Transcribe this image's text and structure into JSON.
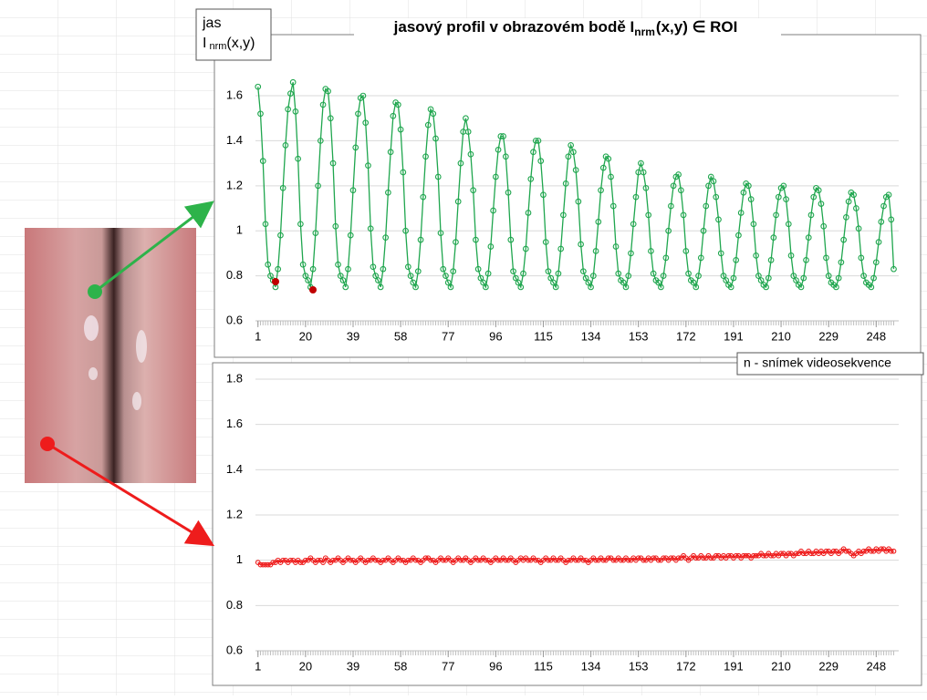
{
  "chart_data": [
    {
      "type": "line",
      "title": "jasový profil v obrazovém bodě I",
      "title_subscript": "nrm",
      "title_end": "(x,y) ∈ ROI",
      "y_label": "jas",
      "y_label_symbol": "I",
      "y_label_subscript": "nrm",
      "y_label_end": "(x,y)",
      "x_label": "n - snímek videosekvence",
      "marker": "circle",
      "grid": true,
      "xlim": [
        0,
        257
      ],
      "xticks": [
        1,
        20,
        39,
        58,
        77,
        96,
        115,
        134,
        153,
        172,
        191,
        210,
        229,
        248
      ],
      "ylim": [
        0.6,
        1.75
      ],
      "yticks": [
        0.6,
        0.8,
        1,
        1.2,
        1.4,
        1.6
      ],
      "x": [
        1,
        2,
        3,
        4,
        5,
        6,
        7,
        8,
        9,
        10,
        11,
        12,
        13,
        14,
        15,
        16,
        17,
        18,
        19,
        20,
        21,
        22,
        23,
        24,
        25,
        26,
        27,
        28,
        29,
        30,
        31,
        32,
        33,
        34,
        35,
        36,
        37,
        38,
        39,
        40,
        41,
        42,
        43,
        44,
        45,
        46,
        47,
        48,
        49,
        50,
        51,
        52,
        53,
        54,
        55,
        56,
        57,
        58,
        59,
        60,
        61,
        62,
        63,
        64,
        65,
        66,
        67,
        68,
        69,
        70,
        71,
        72,
        73,
        74,
        75,
        76,
        77,
        78,
        79,
        80,
        81,
        82,
        83,
        84,
        85,
        86,
        87,
        88,
        89,
        90,
        91,
        92,
        93,
        94,
        95,
        96,
        97,
        98,
        99,
        100,
        101,
        102,
        103,
        104,
        105,
        106,
        107,
        108,
        109,
        110,
        111,
        112,
        113,
        114,
        115,
        116,
        117,
        118,
        119,
        120,
        121,
        122,
        123,
        124,
        125,
        126,
        127,
        128,
        129,
        130,
        131,
        132,
        133,
        134,
        135,
        136,
        137,
        138,
        139,
        140,
        141,
        142,
        143,
        144,
        145,
        146,
        147,
        148,
        149,
        150,
        151,
        152,
        153,
        154,
        155,
        156,
        157,
        158,
        159,
        160,
        161,
        162,
        163,
        164,
        165,
        166,
        167,
        168,
        169,
        170,
        171,
        172,
        173,
        174,
        175,
        176,
        177,
        178,
        179,
        180,
        181,
        182,
        183,
        184,
        185,
        186,
        187,
        188,
        189,
        190,
        191,
        192,
        193,
        194,
        195,
        196,
        197,
        198,
        199,
        200,
        201,
        202,
        203,
        204,
        205,
        206,
        207,
        208,
        209,
        210,
        211,
        212,
        213,
        214,
        215,
        216,
        217,
        218,
        219,
        220,
        221,
        222,
        223,
        224,
        225,
        226,
        227,
        228,
        229,
        230,
        231,
        232,
        233,
        234,
        235,
        236,
        237,
        238,
        239,
        240,
        241,
        242,
        243,
        244,
        245,
        246,
        247,
        248,
        249,
        250,
        251,
        252,
        253,
        254,
        255
      ],
      "series": [
        {
          "color": "#1fa64e",
          "values": [
            1.64,
            1.52,
            1.31,
            1.03,
            0.85,
            0.8,
            0.78,
            0.75,
            0.83,
            0.98,
            1.19,
            1.38,
            1.54,
            1.61,
            1.66,
            1.53,
            1.32,
            1.03,
            0.85,
            0.8,
            0.78,
            0.75,
            0.83,
            0.99,
            1.2,
            1.4,
            1.56,
            1.63,
            1.62,
            1.5,
            1.3,
            1.02,
            0.85,
            0.8,
            0.78,
            0.75,
            0.83,
            0.98,
            1.18,
            1.37,
            1.52,
            1.59,
            1.6,
            1.48,
            1.29,
            1.01,
            0.84,
            0.8,
            0.78,
            0.75,
            0.83,
            0.97,
            1.17,
            1.35,
            1.51,
            1.57,
            1.56,
            1.45,
            1.26,
            1.0,
            0.84,
            0.8,
            0.77,
            0.75,
            0.82,
            0.96,
            1.15,
            1.33,
            1.47,
            1.54,
            1.52,
            1.41,
            1.24,
            0.99,
            0.83,
            0.8,
            0.77,
            0.75,
            0.82,
            0.95,
            1.13,
            1.3,
            1.44,
            1.5,
            1.44,
            1.34,
            1.18,
            0.96,
            0.83,
            0.79,
            0.77,
            0.75,
            0.81,
            0.93,
            1.09,
            1.24,
            1.36,
            1.42,
            1.42,
            1.33,
            1.17,
            0.96,
            0.82,
            0.79,
            0.77,
            0.75,
            0.81,
            0.92,
            1.08,
            1.23,
            1.35,
            1.4,
            1.4,
            1.31,
            1.16,
            0.95,
            0.82,
            0.79,
            0.77,
            0.75,
            0.81,
            0.92,
            1.07,
            1.21,
            1.33,
            1.38,
            1.35,
            1.27,
            1.13,
            0.94,
            0.82,
            0.79,
            0.77,
            0.75,
            0.8,
            0.91,
            1.04,
            1.18,
            1.28,
            1.33,
            1.32,
            1.24,
            1.11,
            0.93,
            0.81,
            0.78,
            0.77,
            0.75,
            0.8,
            0.9,
            1.03,
            1.15,
            1.26,
            1.3,
            1.26,
            1.19,
            1.07,
            0.91,
            0.81,
            0.78,
            0.77,
            0.75,
            0.8,
            0.88,
            1.0,
            1.11,
            1.2,
            1.24,
            1.25,
            1.18,
            1.07,
            0.91,
            0.81,
            0.78,
            0.77,
            0.75,
            0.8,
            0.88,
            1.0,
            1.11,
            1.2,
            1.24,
            1.22,
            1.15,
            1.05,
            0.9,
            0.8,
            0.78,
            0.76,
            0.75,
            0.79,
            0.87,
            0.98,
            1.08,
            1.17,
            1.21,
            1.2,
            1.14,
            1.03,
            0.89,
            0.8,
            0.78,
            0.76,
            0.75,
            0.79,
            0.87,
            0.97,
            1.07,
            1.15,
            1.19,
            1.2,
            1.14,
            1.03,
            0.89,
            0.8,
            0.78,
            0.76,
            0.75,
            0.79,
            0.87,
            0.97,
            1.07,
            1.15,
            1.19,
            1.18,
            1.12,
            1.02,
            0.88,
            0.8,
            0.77,
            0.76,
            0.75,
            0.79,
            0.86,
            0.96,
            1.06,
            1.13,
            1.17,
            1.16,
            1.1,
            1.01,
            0.88,
            0.8,
            0.77,
            0.76,
            0.75,
            0.79,
            0.86,
            0.95,
            1.04,
            1.11,
            1.15,
            1.16,
            1.05,
            0.83
          ]
        }
      ]
    },
    {
      "type": "line",
      "marker": "circle",
      "grid": true,
      "xlim": [
        0,
        257
      ],
      "xticks": [
        1,
        20,
        39,
        58,
        77,
        96,
        115,
        134,
        153,
        172,
        191,
        210,
        229,
        248
      ],
      "ylim": [
        0.6,
        1.8
      ],
      "yticks": [
        0.6,
        0.8,
        1,
        1.2,
        1.4,
        1.6,
        1.8
      ],
      "x": [
        1,
        2,
        3,
        4,
        5,
        6,
        7,
        8,
        9,
        10,
        11,
        12,
        13,
        14,
        15,
        16,
        17,
        18,
        19,
        20,
        21,
        22,
        23,
        24,
        25,
        26,
        27,
        28,
        29,
        30,
        31,
        32,
        33,
        34,
        35,
        36,
        37,
        38,
        39,
        40,
        41,
        42,
        43,
        44,
        45,
        46,
        47,
        48,
        49,
        50,
        51,
        52,
        53,
        54,
        55,
        56,
        57,
        58,
        59,
        60,
        61,
        62,
        63,
        64,
        65,
        66,
        67,
        68,
        69,
        70,
        71,
        72,
        73,
        74,
        75,
        76,
        77,
        78,
        79,
        80,
        81,
        82,
        83,
        84,
        85,
        86,
        87,
        88,
        89,
        90,
        91,
        92,
        93,
        94,
        95,
        96,
        97,
        98,
        99,
        100,
        101,
        102,
        103,
        104,
        105,
        106,
        107,
        108,
        109,
        110,
        111,
        112,
        113,
        114,
        115,
        116,
        117,
        118,
        119,
        120,
        121,
        122,
        123,
        124,
        125,
        126,
        127,
        128,
        129,
        130,
        131,
        132,
        133,
        134,
        135,
        136,
        137,
        138,
        139,
        140,
        141,
        142,
        143,
        144,
        145,
        146,
        147,
        148,
        149,
        150,
        151,
        152,
        153,
        154,
        155,
        156,
        157,
        158,
        159,
        160,
        161,
        162,
        163,
        164,
        165,
        166,
        167,
        168,
        169,
        170,
        171,
        172,
        173,
        174,
        175,
        176,
        177,
        178,
        179,
        180,
        181,
        182,
        183,
        184,
        185,
        186,
        187,
        188,
        189,
        190,
        191,
        192,
        193,
        194,
        195,
        196,
        197,
        198,
        199,
        200,
        201,
        202,
        203,
        204,
        205,
        206,
        207,
        208,
        209,
        210,
        211,
        212,
        213,
        214,
        215,
        216,
        217,
        218,
        219,
        220,
        221,
        222,
        223,
        224,
        225,
        226,
        227,
        228,
        229,
        230,
        231,
        232,
        233,
        234,
        235,
        236,
        237,
        238,
        239,
        240,
        241,
        242,
        243,
        244,
        245,
        246,
        247,
        248,
        249,
        250,
        251,
        252,
        253,
        254,
        255
      ],
      "series": [
        {
          "color": "#ee1c1c",
          "values": [
            0.99,
            0.98,
            0.98,
            0.98,
            0.98,
            0.98,
            0.99,
            0.99,
            1.0,
            0.99,
            1.0,
            1.0,
            0.99,
            1.0,
            1.0,
            0.99,
            1.0,
            0.99,
            0.99,
            1.0,
            1.0,
            1.01,
            1.0,
            0.99,
            1.0,
            1.0,
            0.99,
            1.01,
            1.0,
            0.99,
            1.0,
            1.0,
            1.01,
            1.0,
            0.99,
            1.0,
            1.01,
            1.0,
            1.0,
            0.99,
            1.0,
            1.01,
            1.0,
            0.99,
            1.0,
            1.0,
            1.01,
            1.0,
            1.0,
            0.99,
            1.0,
            1.0,
            1.01,
            1.0,
            0.99,
            1.0,
            1.01,
            1.0,
            1.0,
            0.99,
            1.0,
            1.0,
            1.01,
            1.0,
            1.0,
            0.99,
            1.0,
            1.01,
            1.01,
            1.0,
            1.0,
            0.99,
            1.0,
            1.01,
            1.0,
            1.0,
            1.01,
            1.0,
            0.99,
            1.0,
            1.01,
            1.0,
            1.0,
            1.01,
            1.0,
            0.99,
            1.0,
            1.01,
            1.0,
            1.0,
            1.01,
            1.0,
            1.0,
            0.99,
            1.0,
            1.01,
            1.0,
            1.0,
            1.01,
            1.0,
            1.0,
            1.01,
            1.0,
            0.99,
            1.0,
            1.01,
            1.0,
            1.01,
            1.0,
            1.0,
            1.01,
            1.0,
            1.0,
            0.99,
            1.0,
            1.01,
            1.0,
            1.0,
            1.01,
            1.0,
            1.0,
            1.01,
            1.0,
            0.99,
            1.0,
            1.0,
            1.01,
            1.0,
            1.0,
            1.01,
            1.0,
            1.0,
            0.99,
            1.0,
            1.01,
            1.0,
            1.0,
            1.01,
            1.0,
            1.0,
            1.01,
            1.01,
            1.0,
            1.0,
            1.01,
            1.0,
            1.0,
            1.01,
            1.0,
            1.0,
            1.01,
            1.0,
            1.01,
            1.01,
            1.0,
            1.0,
            1.01,
            1.0,
            1.01,
            1.01,
            1.0,
            1.0,
            1.01,
            1.01,
            1.0,
            1.01,
            1.01,
            1.0,
            1.01,
            1.01,
            1.02,
            1.01,
            1.0,
            1.01,
            1.02,
            1.01,
            1.01,
            1.02,
            1.01,
            1.01,
            1.02,
            1.01,
            1.01,
            1.02,
            1.02,
            1.01,
            1.02,
            1.01,
            1.02,
            1.02,
            1.01,
            1.02,
            1.02,
            1.01,
            1.02,
            1.02,
            1.02,
            1.01,
            1.02,
            1.02,
            1.02,
            1.03,
            1.02,
            1.02,
            1.03,
            1.02,
            1.02,
            1.03,
            1.02,
            1.03,
            1.03,
            1.02,
            1.03,
            1.03,
            1.02,
            1.03,
            1.03,
            1.04,
            1.03,
            1.03,
            1.04,
            1.03,
            1.03,
            1.04,
            1.03,
            1.04,
            1.03,
            1.04,
            1.04,
            1.03,
            1.04,
            1.04,
            1.03,
            1.04,
            1.05,
            1.04,
            1.04,
            1.03,
            1.02,
            1.03,
            1.04,
            1.03,
            1.04,
            1.04,
            1.05,
            1.04,
            1.04,
            1.05,
            1.04,
            1.05,
            1.05,
            1.04,
            1.05,
            1.04,
            1.04
          ]
        }
      ]
    }
  ]
}
